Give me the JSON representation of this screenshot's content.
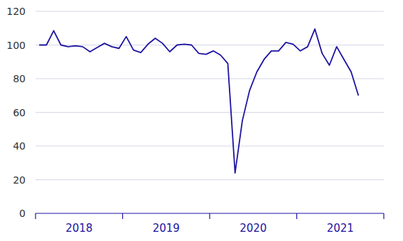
{
  "chart_data": {
    "type": "line",
    "categories": [
      null,
      null,
      null,
      null,
      null,
      null,
      "2018",
      null,
      null,
      null,
      null,
      null,
      null,
      null,
      null,
      null,
      null,
      null,
      "2019",
      null,
      null,
      null,
      null,
      null,
      null,
      null,
      null,
      null,
      null,
      null,
      "2020",
      null,
      null,
      null,
      null,
      null,
      null,
      null,
      null,
      null,
      null,
      null,
      "2021",
      null,
      null,
      null,
      null,
      null
    ],
    "values": [
      100,
      100,
      108.5,
      100,
      99,
      99.5,
      99,
      96,
      98.5,
      101,
      99,
      98,
      105,
      97,
      95.5,
      100.5,
      104,
      101,
      96,
      100,
      100.5,
      100,
      95,
      94.5,
      96.5,
      94,
      89,
      24,
      55,
      73,
      84,
      91.5,
      96.5,
      96.5,
      101.5,
      100.5,
      96.5,
      99,
      109.5,
      95,
      88,
      99,
      91.5,
      84,
      70,
      null,
      null,
      null
    ],
    "color": "#1e14a0",
    "ylim": [
      0,
      120
    ],
    "yticks": [
      0,
      20,
      40,
      60,
      80,
      100,
      120
    ],
    "grid": true
  }
}
